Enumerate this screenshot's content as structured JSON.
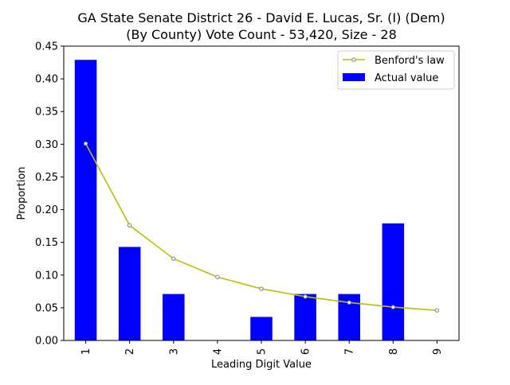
{
  "chart_data": {
    "type": "bar",
    "title_line1": "GA State Senate District 26 - David E. Lucas, Sr. (I) (Dem)",
    "title_line2": "(By County) Vote Count - 53,420, Size - 28",
    "xlabel": "Leading Digit Value",
    "ylabel": "Proportion",
    "categories": [
      "1",
      "2",
      "3",
      "4",
      "5",
      "6",
      "7",
      "8",
      "9"
    ],
    "ylim": [
      0,
      0.45
    ],
    "yticks": [
      "0.00",
      "0.05",
      "0.10",
      "0.15",
      "0.20",
      "0.25",
      "0.30",
      "0.35",
      "0.40",
      "0.45"
    ],
    "grid": false,
    "legend_position": "top-right",
    "series": [
      {
        "name": "Benford's law",
        "kind": "line",
        "color": "#bfbf00",
        "values": [
          0.301,
          0.176,
          0.125,
          0.097,
          0.079,
          0.067,
          0.058,
          0.051,
          0.046
        ]
      },
      {
        "name": "Actual value",
        "kind": "bar",
        "color": "#0000ff",
        "values": [
          0.429,
          0.143,
          0.071,
          0.0,
          0.036,
          0.071,
          0.071,
          0.179,
          0.0
        ]
      }
    ]
  }
}
